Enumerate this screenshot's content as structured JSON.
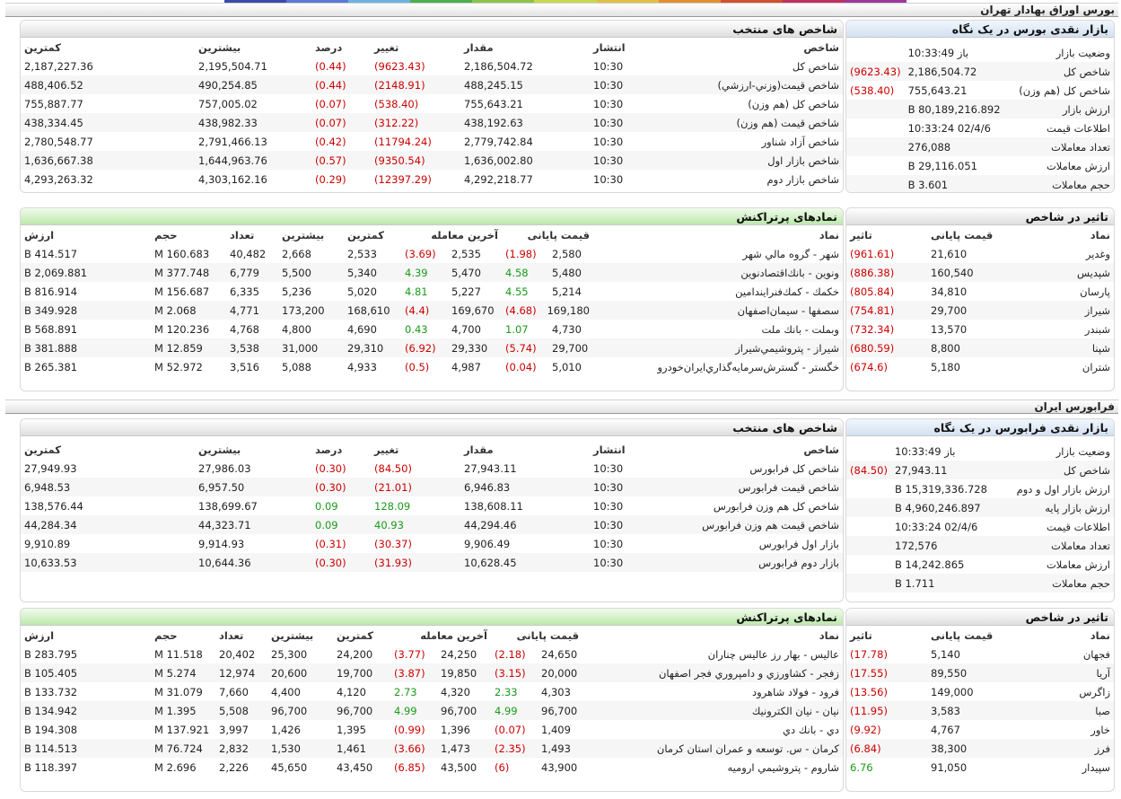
{
  "colors": {
    "negative": "#cc0000",
    "positive": "#1a9a1a",
    "strip": [
      "#3b4aa8",
      "#5a7bd6",
      "#6fb3e0",
      "#4caf50",
      "#8bc34a",
      "#c8d850",
      "#e0c040",
      "#e09030",
      "#d05030",
      "#c03060",
      "#9a3a9a"
    ]
  },
  "tse": {
    "title": "بورس اوراق بهادار تهران",
    "glance": {
      "title": "بازار نقدی بورس در یک نگاه",
      "rows": [
        {
          "label": "وضعيت بازار",
          "value": "باز 10:33:49",
          "change": ""
        },
        {
          "label": "شاخص کل",
          "value": "2,186,504.72",
          "change": "(9623.43)"
        },
        {
          "label": "شاخص کل (هم وزن)",
          "value": "755,643.21",
          "change": "(538.40)"
        },
        {
          "label": "ارزش بازار",
          "value": "80,189,216.892 B",
          "change": ""
        },
        {
          "label": "اطلاعات قیمت",
          "value": "02/4/6 10:33:24",
          "change": ""
        },
        {
          "label": "تعداد معاملات",
          "value": "276,088",
          "change": ""
        },
        {
          "label": "ارزش معاملات",
          "value": "29,116.051 B",
          "change": ""
        },
        {
          "label": "حجم معاملات",
          "value": "3.601 B",
          "change": ""
        }
      ]
    },
    "indices": {
      "title": "شاخص های منتخب",
      "headers": {
        "name": "شاخص",
        "time": "انتشار",
        "value": "مقدار",
        "change": "تغییر",
        "percent": "درصد",
        "high": "بیشترین",
        "low": "کمترین"
      },
      "rows": [
        {
          "name": "شاخص کل",
          "time": "10:30",
          "value": "2,186,504.72",
          "change": "(9623.43)",
          "percent": "(0.44)",
          "high": "2,195,504.71",
          "low": "2,187,227.36"
        },
        {
          "name": "شاخص قیمت(وزني-ارزشي)",
          "time": "10:30",
          "value": "488,245.15",
          "change": "(2148.91)",
          "percent": "(0.44)",
          "high": "490,254.85",
          "low": "488,406.52"
        },
        {
          "name": "شاخص کل (هم وزن)",
          "time": "10:30",
          "value": "755,643.21",
          "change": "(538.40)",
          "percent": "(0.07)",
          "high": "757,005.02",
          "low": "755,887.77"
        },
        {
          "name": "شاخص قیمت (هم وزن)",
          "time": "10:30",
          "value": "438,192.63",
          "change": "(312.22)",
          "percent": "(0.07)",
          "high": "438,982.33",
          "low": "438,334.45"
        },
        {
          "name": "شاخص آزاد شناور",
          "time": "10:30",
          "value": "2,779,742.84",
          "change": "(11794.24)",
          "percent": "(0.42)",
          "high": "2,791,466.13",
          "low": "2,780,548.77"
        },
        {
          "name": "شاخص بازار اول",
          "time": "10:30",
          "value": "1,636,002.80",
          "change": "(9350.54)",
          "percent": "(0.57)",
          "high": "1,644,963.76",
          "low": "1,636,667.38"
        },
        {
          "name": "شاخص بازار دوم",
          "time": "10:30",
          "value": "4,292,218.77",
          "change": "(12397.29)",
          "percent": "(0.29)",
          "high": "4,303,162.16",
          "low": "4,293,263.32"
        }
      ]
    },
    "impact": {
      "title": "تاثیر در شاخص",
      "headers": {
        "symbol": "نماد",
        "price": "قیمت پایانی",
        "impact": "تاثیر"
      },
      "rows": [
        {
          "symbol": "وغدير",
          "price": "21,610",
          "impact": "(961.61)"
        },
        {
          "symbol": "شپديس",
          "price": "160,540",
          "impact": "(886.38)"
        },
        {
          "symbol": "پارسان",
          "price": "34,810",
          "impact": "(805.84)"
        },
        {
          "symbol": "شيراز",
          "price": "29,700",
          "impact": "(754.81)"
        },
        {
          "symbol": "شبندر",
          "price": "13,570",
          "impact": "(732.34)"
        },
        {
          "symbol": "شپنا",
          "price": "8,800",
          "impact": "(680.59)"
        },
        {
          "symbol": "شتران",
          "price": "5,180",
          "impact": "(674.6)"
        }
      ]
    },
    "active": {
      "title": "نمادهای پرتراکنش",
      "headers": {
        "symbol": "نماد",
        "close": "قیمت پایانی",
        "last": "آخرین معامله",
        "low": "کمترین",
        "high": "بیشترین",
        "count": "تعداد",
        "volume": "حجم",
        "value": "ارزش"
      },
      "rows": [
        {
          "symbol": "شهر - گروه مالي شهر",
          "close": "2,580",
          "close_chg": "(1.98)",
          "last": "2,535",
          "last_chg": "(3.69)",
          "low": "2,533",
          "high": "2,668",
          "count": "40,482",
          "volume": "160.683 M",
          "value": "414.517 B"
        },
        {
          "symbol": "ونوين - بانك‌اقتصادنوين",
          "close": "5,480",
          "close_chg": "4.58",
          "last": "5,470",
          "last_chg": "4.39",
          "low": "5,340",
          "high": "5,500",
          "count": "6,779",
          "volume": "377.748 M",
          "value": "2,069.881 B"
        },
        {
          "symbol": "خكمك - كمك‌فنرايندامين",
          "close": "5,214",
          "close_chg": "4.55",
          "last": "5,227",
          "last_chg": "4.81",
          "low": "5,020",
          "high": "5,236",
          "count": "6,335",
          "volume": "156.687 M",
          "value": "816.914 B"
        },
        {
          "symbol": "سصفها - سيمان‌اصفهان",
          "close": "169,180",
          "close_chg": "(4.68)",
          "last": "169,670",
          "last_chg": "(4.4)",
          "low": "168,610",
          "high": "173,200",
          "count": "4,771",
          "volume": "2.068 M",
          "value": "349.928 B"
        },
        {
          "symbol": "وبملت - بانك ملت",
          "close": "4,730",
          "close_chg": "1.07",
          "last": "4,700",
          "last_chg": "0.43",
          "low": "4,690",
          "high": "4,800",
          "count": "4,768",
          "volume": "120.236 M",
          "value": "568.891 B"
        },
        {
          "symbol": "شيراز - پتروشيمي‌شيراز",
          "close": "29,700",
          "close_chg": "(5.74)",
          "last": "29,330",
          "last_chg": "(6.92)",
          "low": "29,310",
          "high": "31,000",
          "count": "3,538",
          "volume": "12.859 M",
          "value": "381.888 B"
        },
        {
          "symbol": "خگستر - گسترش‌سرمايه‌گذاري‌ايران‌خودرو",
          "close": "5,010",
          "close_chg": "(0.04)",
          "last": "4,987",
          "last_chg": "(0.5)",
          "low": "4,933",
          "high": "5,088",
          "count": "3,516",
          "volume": "52.972 M",
          "value": "265.381 B"
        }
      ]
    }
  },
  "ifb": {
    "title": "فرابورس ایران",
    "glance": {
      "title": "بازار نقدی فرابورس در یک نگاه",
      "rows": [
        {
          "label": "وضعيت بازار",
          "value": "باز 10:33:49",
          "change": ""
        },
        {
          "label": "شاخص کل",
          "value": "27,943.11",
          "change": "(84.50)"
        },
        {
          "label": "ارزش بازار اول و دوم",
          "value": "15,319,336.728 B",
          "change": ""
        },
        {
          "label": "ارزش بازار پایه",
          "value": "4,960,246.897 B",
          "change": ""
        },
        {
          "label": "اطلاعات قیمت",
          "value": "02/4/6 10:33:24",
          "change": ""
        },
        {
          "label": "تعداد معاملات",
          "value": "172,576",
          "change": ""
        },
        {
          "label": "ارزش معاملات",
          "value": "14,242.865 B",
          "change": ""
        },
        {
          "label": "حجم معاملات",
          "value": "1.711 B",
          "change": ""
        }
      ]
    },
    "indices": {
      "title": "شاخص های منتخب",
      "headers": {
        "name": "شاخص",
        "time": "انتشار",
        "value": "مقدار",
        "change": "تغییر",
        "percent": "درصد",
        "high": "بیشترین",
        "low": "کمترین"
      },
      "rows": [
        {
          "name": "شاخص کل فرابورس",
          "time": "10:30",
          "value": "27,943.11",
          "change": "(84.50)",
          "percent": "(0.30)",
          "high": "27,986.03",
          "low": "27,949.93"
        },
        {
          "name": "شاخص قیمت فرابورس",
          "time": "10:30",
          "value": "6,946.83",
          "change": "(21.01)",
          "percent": "(0.30)",
          "high": "6,957.50",
          "low": "6,948.53"
        },
        {
          "name": "شاخص کل هم وزن فرابورس",
          "time": "10:30",
          "value": "138,608.11",
          "change": "128.09",
          "percent": "0.09",
          "high": "138,699.67",
          "low": "138,576.44"
        },
        {
          "name": "شاخص قیمت هم وزن فرابورس",
          "time": "10:30",
          "value": "44,294.46",
          "change": "40.93",
          "percent": "0.09",
          "high": "44,323.71",
          "low": "44,284.34"
        },
        {
          "name": "بازار اول فرابورس",
          "time": "10:30",
          "value": "9,906.49",
          "change": "(30.37)",
          "percent": "(0.31)",
          "high": "9,914.93",
          "low": "9,910.89"
        },
        {
          "name": "بازار دوم فرابورس",
          "time": "10:30",
          "value": "10,628.45",
          "change": "(31.93)",
          "percent": "(0.30)",
          "high": "10,644.36",
          "low": "10,633.53"
        }
      ]
    },
    "impact": {
      "title": "تاثیر در شاخص",
      "headers": {
        "symbol": "نماد",
        "price": "قیمت پایانی",
        "impact": "تاثیر"
      },
      "rows": [
        {
          "symbol": "فجهان",
          "price": "5,140",
          "impact": "(17.78)"
        },
        {
          "symbol": "آريا",
          "price": "89,550",
          "impact": "(17.55)"
        },
        {
          "symbol": "زاگرس",
          "price": "149,000",
          "impact": "(13.56)"
        },
        {
          "symbol": "صبا",
          "price": "3,583",
          "impact": "(11.95)"
        },
        {
          "symbol": "خاور",
          "price": "4,767",
          "impact": "(9.92)"
        },
        {
          "symbol": "فرز",
          "price": "38,300",
          "impact": "(6.84)"
        },
        {
          "symbol": "سپيدار",
          "price": "91,050",
          "impact": "6.76"
        }
      ]
    },
    "active": {
      "title": "نمادهای پرتراکنش",
      "headers": {
        "symbol": "نماد",
        "close": "قیمت پایانی",
        "last": "آخرین معامله",
        "low": "کمترین",
        "high": "بیشترین",
        "count": "تعداد",
        "volume": "حجم",
        "value": "ارزش"
      },
      "rows": [
        {
          "symbol": "عاليس - بهار رز عاليس چناران",
          "close": "24,650",
          "close_chg": "(2.18)",
          "last": "24,250",
          "last_chg": "(3.77)",
          "low": "24,200",
          "high": "25,300",
          "count": "20,402",
          "volume": "11.518 M",
          "value": "283.795 B"
        },
        {
          "symbol": "زفجر - كشاورزي و دامپروري فجر اصفهان",
          "close": "20,000",
          "close_chg": "(3.15)",
          "last": "19,850",
          "last_chg": "(3.87)",
          "low": "19,700",
          "high": "20,600",
          "count": "12,974",
          "volume": "5.274 M",
          "value": "105.405 B"
        },
        {
          "symbol": "فرود - فولاد شاهرود",
          "close": "4,303",
          "close_chg": "2.33",
          "last": "4,320",
          "last_chg": "2.73",
          "low": "4,120",
          "high": "4,400",
          "count": "7,660",
          "volume": "31.079 M",
          "value": "133.732 B"
        },
        {
          "symbol": "نيان - نيان الكترونيك",
          "close": "96,700",
          "close_chg": "4.99",
          "last": "96,700",
          "last_chg": "4.99",
          "low": "96,700",
          "high": "96,700",
          "count": "5,508",
          "volume": "1.395 M",
          "value": "134.942 B"
        },
        {
          "symbol": "دي - بانك دي",
          "close": "1,409",
          "close_chg": "(0.07)",
          "last": "1,396",
          "last_chg": "(0.99)",
          "low": "1,395",
          "high": "1,426",
          "count": "3,997",
          "volume": "137.921 M",
          "value": "194.308 B"
        },
        {
          "symbol": "كرمان - س. توسعه و عمران استان كرمان",
          "close": "1,493",
          "close_chg": "(2.35)",
          "last": "1,473",
          "last_chg": "(3.66)",
          "low": "1,461",
          "high": "1,530",
          "count": "2,832",
          "volume": "76.724 M",
          "value": "114.513 B"
        },
        {
          "symbol": "شاروم - پتروشيمي اروميه",
          "close": "43,900",
          "close_chg": "(6)",
          "last": "43,500",
          "last_chg": "(6.85)",
          "low": "43,450",
          "high": "45,650",
          "count": "2,226",
          "volume": "2.696 M",
          "value": "118.397 B"
        }
      ]
    }
  }
}
